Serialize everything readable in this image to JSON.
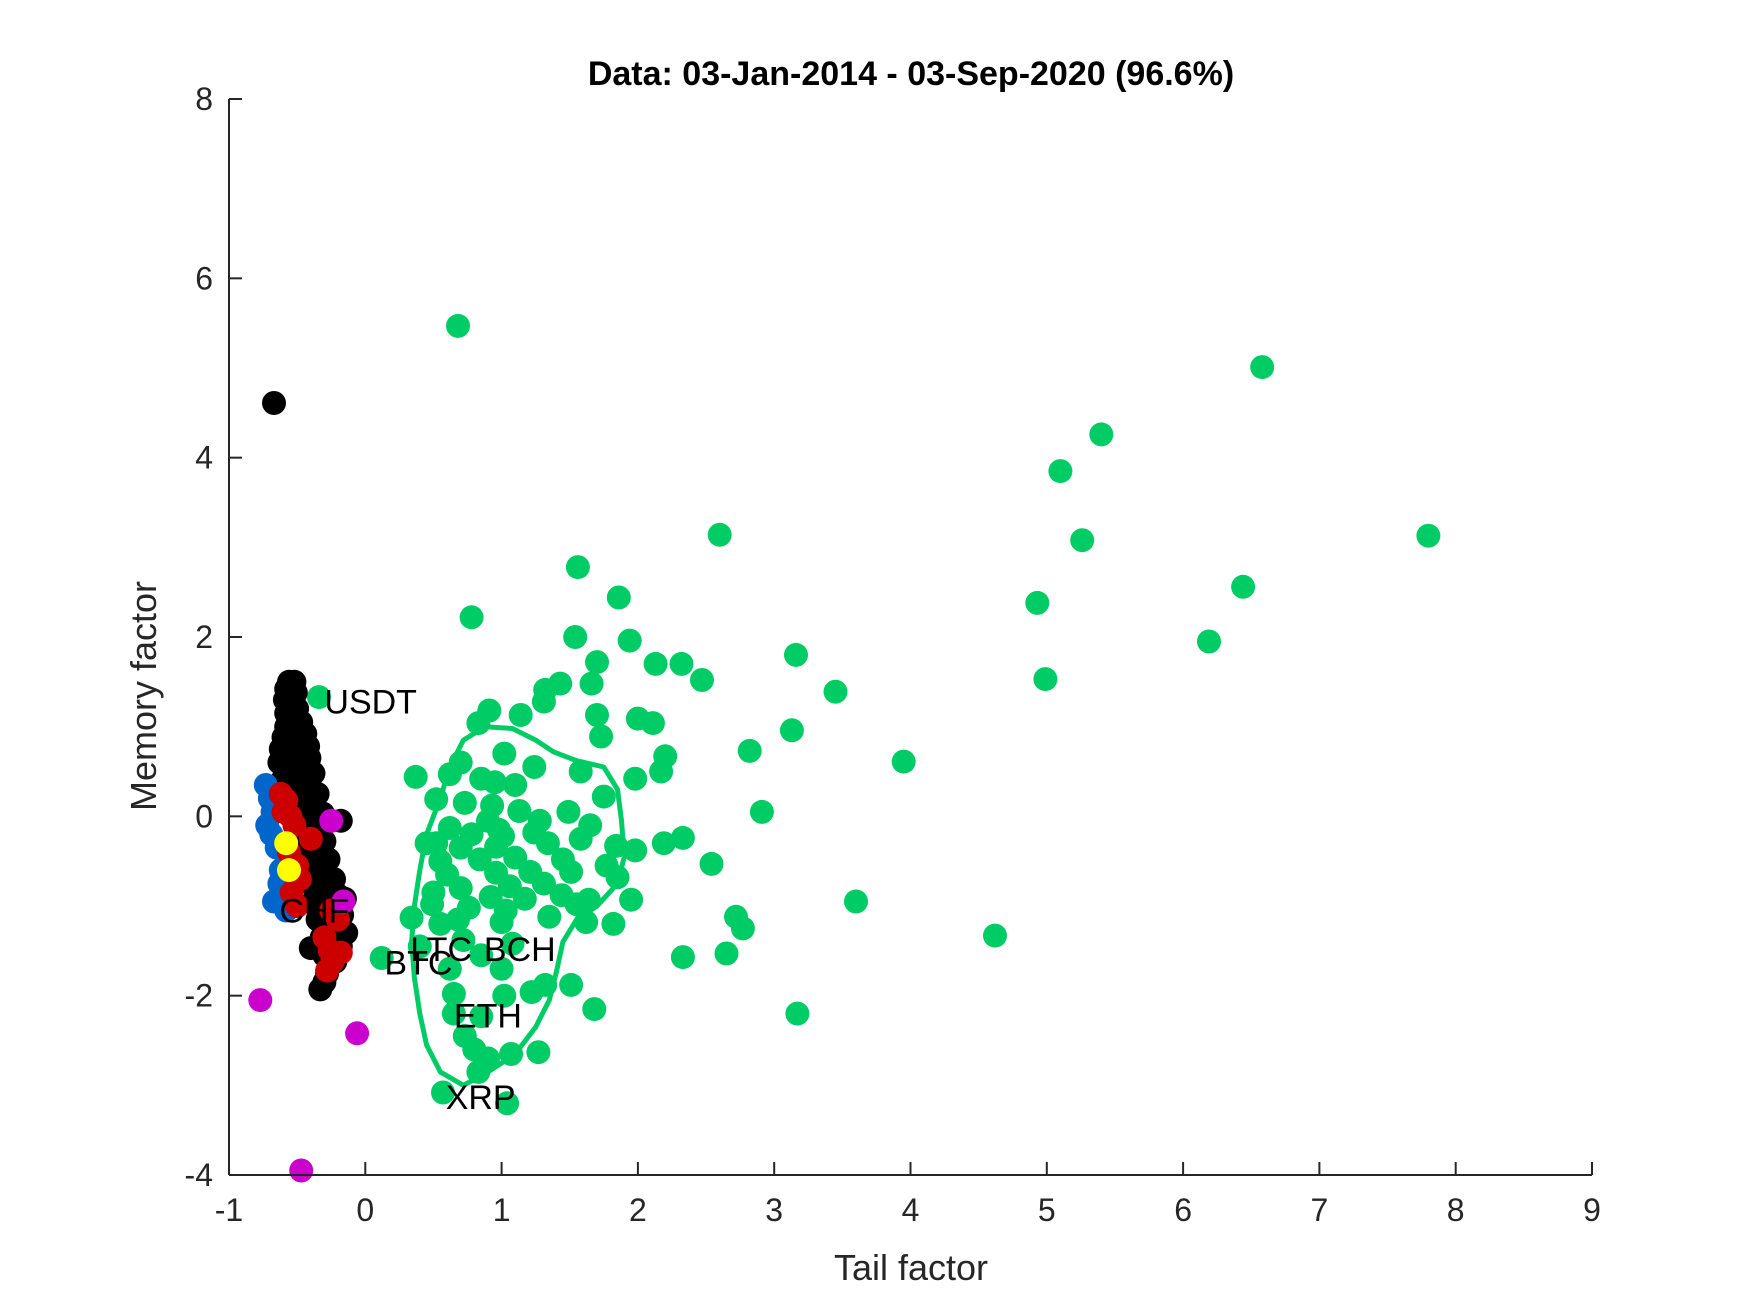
{
  "chart_data": {
    "type": "scatter",
    "title": "Data: 03-Jan-2014 - 03-Sep-2020 (96.6%)",
    "xlabel": "Tail factor",
    "ylabel": "Memory factor",
    "xlim": [
      -1,
      9
    ],
    "ylim": [
      -4,
      8
    ],
    "xticks": [
      -1,
      0,
      1,
      2,
      3,
      4,
      5,
      6,
      7,
      8,
      9
    ],
    "yticks": [
      -4,
      -2,
      0,
      2,
      4,
      6,
      8
    ],
    "grid": false,
    "legend": "none",
    "colors": {
      "green": "#00cc66",
      "black": "#000000",
      "blue": "#0066cc",
      "red": "#cc0000",
      "yellow": "#ffff00",
      "magenta": "#cc00cc",
      "axis": "#262626"
    },
    "series": [
      {
        "color": "green",
        "points": [
          [
            0.68,
            5.47
          ],
          [
            6.58,
            5.01
          ],
          [
            5.4,
            4.26
          ],
          [
            5.1,
            3.85
          ],
          [
            5.26,
            3.08
          ],
          [
            2.6,
            3.14
          ],
          [
            7.8,
            3.13
          ],
          [
            1.56,
            2.78
          ],
          [
            1.86,
            2.44
          ],
          [
            6.44,
            2.56
          ],
          [
            4.93,
            2.38
          ],
          [
            0.78,
            2.22
          ],
          [
            1.54,
            2.0
          ],
          [
            1.94,
            1.96
          ],
          [
            6.19,
            1.95
          ],
          [
            3.16,
            1.8
          ],
          [
            1.7,
            1.72
          ],
          [
            2.13,
            1.7
          ],
          [
            2.32,
            1.7
          ],
          [
            2.47,
            1.52
          ],
          [
            4.99,
            1.53
          ],
          [
            1.43,
            1.48
          ],
          [
            1.66,
            1.48
          ],
          [
            1.32,
            1.41
          ],
          [
            3.45,
            1.39
          ],
          [
            1.31,
            1.28
          ],
          [
            -0.34,
            1.33
          ],
          [
            0.91,
            1.18
          ],
          [
            1.14,
            1.13
          ],
          [
            1.7,
            1.13
          ],
          [
            2.0,
            1.09
          ],
          [
            2.11,
            1.04
          ],
          [
            0.83,
            1.04
          ],
          [
            3.13,
            0.96
          ],
          [
            1.73,
            0.89
          ],
          [
            2.82,
            0.73
          ],
          [
            2.2,
            0.67
          ],
          [
            1.02,
            0.7
          ],
          [
            0.7,
            0.6
          ],
          [
            3.95,
            0.61
          ],
          [
            1.58,
            0.5
          ],
          [
            1.24,
            0.55
          ],
          [
            2.17,
            0.5
          ],
          [
            0.62,
            0.47
          ],
          [
            0.85,
            0.42
          ],
          [
            1.98,
            0.42
          ],
          [
            0.37,
            0.44
          ],
          [
            0.95,
            0.38
          ],
          [
            1.1,
            0.35
          ],
          [
            1.75,
            0.22
          ],
          [
            0.52,
            0.19
          ],
          [
            0.73,
            0.15
          ],
          [
            0.93,
            0.12
          ],
          [
            1.13,
            0.06
          ],
          [
            1.49,
            0.05
          ],
          [
            2.91,
            0.05
          ],
          [
            0.9,
            -0.05
          ],
          [
            1.65,
            -0.1
          ],
          [
            0.62,
            -0.13
          ],
          [
            0.78,
            -0.2
          ],
          [
            1.01,
            -0.22
          ],
          [
            1.24,
            -0.18
          ],
          [
            1.58,
            -0.25
          ],
          [
            2.33,
            -0.24
          ],
          [
            0.52,
            -0.3
          ],
          [
            0.7,
            -0.35
          ],
          [
            0.96,
            -0.34
          ],
          [
            1.34,
            -0.3
          ],
          [
            1.84,
            -0.33
          ],
          [
            2.19,
            -0.3
          ],
          [
            1.98,
            -0.38
          ],
          [
            0.55,
            -0.5
          ],
          [
            0.84,
            -0.48
          ],
          [
            1.1,
            -0.46
          ],
          [
            1.45,
            -0.48
          ],
          [
            2.54,
            -0.53
          ],
          [
            1.77,
            -0.55
          ],
          [
            0.6,
            -0.65
          ],
          [
            0.96,
            -0.63
          ],
          [
            1.21,
            -0.62
          ],
          [
            1.51,
            -0.62
          ],
          [
            1.85,
            -0.68
          ],
          [
            0.7,
            -0.8
          ],
          [
            1.06,
            -0.78
          ],
          [
            1.31,
            -0.75
          ],
          [
            0.5,
            -0.85
          ],
          [
            0.92,
            -0.9
          ],
          [
            1.17,
            -0.92
          ],
          [
            1.44,
            -0.88
          ],
          [
            1.64,
            -0.93
          ],
          [
            1.95,
            -0.93
          ],
          [
            0.49,
            -0.98
          ],
          [
            0.76,
            -1.02
          ],
          [
            1.03,
            -1.05
          ],
          [
            1.55,
            -0.98
          ],
          [
            3.6,
            -0.95
          ],
          [
            0.68,
            -1.15
          ],
          [
            1.0,
            -1.18
          ],
          [
            1.35,
            -1.12
          ],
          [
            1.62,
            -1.18
          ],
          [
            1.82,
            -1.2
          ],
          [
            2.72,
            -1.12
          ],
          [
            0.34,
            -1.13
          ],
          [
            0.55,
            -1.2
          ],
          [
            2.77,
            -1.25
          ],
          [
            4.62,
            -1.33
          ],
          [
            0.72,
            -1.38
          ],
          [
            1.08,
            -1.42
          ],
          [
            0.4,
            -1.45
          ],
          [
            0.85,
            -1.55
          ],
          [
            2.65,
            -1.53
          ],
          [
            2.33,
            -1.57
          ],
          [
            0.12,
            -1.58
          ],
          [
            0.62,
            -1.7
          ],
          [
            1.0,
            -1.7
          ],
          [
            1.32,
            -1.88
          ],
          [
            1.51,
            -1.88
          ],
          [
            0.65,
            -1.98
          ],
          [
            1.02,
            -2.0
          ],
          [
            1.22,
            -1.96
          ],
          [
            0.65,
            -2.2
          ],
          [
            0.85,
            -2.23
          ],
          [
            1.68,
            -2.15
          ],
          [
            3.17,
            -2.2
          ],
          [
            0.73,
            -2.45
          ],
          [
            0.8,
            -2.6
          ],
          [
            1.07,
            -2.65
          ],
          [
            1.27,
            -2.63
          ],
          [
            0.9,
            -2.7
          ],
          [
            0.83,
            -2.85
          ],
          [
            0.57,
            -3.08
          ],
          [
            1.04,
            -3.2
          ],
          [
            0.45,
            -0.3
          ],
          [
            1.28,
            -0.05
          ],
          [
            0.98,
            -0.15
          ]
        ]
      },
      {
        "color": "black",
        "points": [
          [
            -0.67,
            4.61
          ],
          [
            -0.56,
            1.5
          ],
          [
            -0.52,
            1.5
          ],
          [
            -0.58,
            1.42
          ],
          [
            -0.51,
            1.38
          ],
          [
            -0.59,
            1.3
          ],
          [
            -0.54,
            1.25
          ],
          [
            -0.5,
            1.2
          ],
          [
            -0.58,
            1.15
          ],
          [
            -0.53,
            1.1
          ],
          [
            -0.47,
            1.05
          ],
          [
            -0.58,
            1.0
          ],
          [
            -0.51,
            0.95
          ],
          [
            -0.44,
            0.92
          ],
          [
            -0.6,
            0.88
          ],
          [
            -0.55,
            0.85
          ],
          [
            -0.48,
            0.8
          ],
          [
            -0.42,
            0.78
          ],
          [
            -0.62,
            0.75
          ],
          [
            -0.56,
            0.72
          ],
          [
            -0.49,
            0.68
          ],
          [
            -0.41,
            0.65
          ],
          [
            -0.63,
            0.6
          ],
          [
            -0.57,
            0.56
          ],
          [
            -0.51,
            0.52
          ],
          [
            -0.44,
            0.5
          ],
          [
            -0.38,
            0.48
          ],
          [
            -0.61,
            0.4
          ],
          [
            -0.54,
            0.36
          ],
          [
            -0.47,
            0.34
          ],
          [
            -0.4,
            0.3
          ],
          [
            -0.35,
            0.25
          ],
          [
            -0.57,
            0.2
          ],
          [
            -0.5,
            0.15
          ],
          [
            -0.43,
            0.12
          ],
          [
            -0.37,
            0.08
          ],
          [
            -0.31,
            0.03
          ],
          [
            -0.53,
            0.0
          ],
          [
            -0.46,
            -0.03
          ],
          [
            -0.39,
            -0.06
          ],
          [
            -0.32,
            -0.1
          ],
          [
            -0.18,
            -0.05
          ],
          [
            -0.5,
            -0.15
          ],
          [
            -0.43,
            -0.2
          ],
          [
            -0.36,
            -0.25
          ],
          [
            -0.3,
            -0.28
          ],
          [
            -0.46,
            -0.35
          ],
          [
            -0.4,
            -0.4
          ],
          [
            -0.33,
            -0.44
          ],
          [
            -0.27,
            -0.48
          ],
          [
            -0.43,
            -0.55
          ],
          [
            -0.36,
            -0.6
          ],
          [
            -0.29,
            -0.65
          ],
          [
            -0.23,
            -0.7
          ],
          [
            -0.4,
            -0.75
          ],
          [
            -0.33,
            -0.8
          ],
          [
            -0.26,
            -0.84
          ],
          [
            -0.2,
            -0.88
          ],
          [
            -0.15,
            -0.92
          ],
          [
            -0.38,
            -0.95
          ],
          [
            -0.31,
            -1.0
          ],
          [
            -0.24,
            -1.05
          ],
          [
            -0.17,
            -1.1
          ],
          [
            -0.35,
            -1.15
          ],
          [
            -0.28,
            -1.2
          ],
          [
            -0.21,
            -1.25
          ],
          [
            -0.14,
            -1.3
          ],
          [
            -0.32,
            -1.35
          ],
          [
            -0.25,
            -1.4
          ],
          [
            -0.4,
            -1.47
          ],
          [
            -0.18,
            -1.45
          ],
          [
            -0.3,
            -1.55
          ],
          [
            -0.22,
            -1.62
          ],
          [
            -0.28,
            -1.75
          ],
          [
            -0.33,
            -1.93
          ],
          [
            -0.3,
            -1.85
          ]
        ]
      },
      {
        "color": "blue",
        "points": [
          [
            -0.73,
            0.35
          ],
          [
            -0.7,
            0.2
          ],
          [
            -0.68,
            0.05
          ],
          [
            -0.72,
            -0.1
          ],
          [
            -0.69,
            -0.2
          ],
          [
            -0.65,
            -0.35
          ],
          [
            -0.62,
            -0.6
          ],
          [
            -0.67,
            -0.95
          ],
          [
            -0.58,
            -1.05
          ],
          [
            -0.63,
            -0.75
          ]
        ]
      },
      {
        "color": "red",
        "points": [
          [
            -0.62,
            0.25
          ],
          [
            -0.58,
            0.18
          ],
          [
            -0.6,
            0.05
          ],
          [
            -0.55,
            0.0
          ],
          [
            -0.52,
            -0.1
          ],
          [
            -0.4,
            -0.25
          ],
          [
            -0.56,
            -0.4
          ],
          [
            -0.5,
            -0.55
          ],
          [
            -0.48,
            -0.7
          ],
          [
            -0.54,
            -0.85
          ],
          [
            -0.5,
            -1.0
          ],
          [
            -0.25,
            -1.05
          ],
          [
            -0.2,
            -1.15
          ],
          [
            -0.3,
            -1.35
          ],
          [
            -0.26,
            -1.5
          ],
          [
            -0.18,
            -1.52
          ],
          [
            -0.24,
            -1.62
          ],
          [
            -0.28,
            -1.72
          ]
        ]
      },
      {
        "color": "yellow",
        "points": [
          [
            -0.58,
            -0.3
          ],
          [
            -0.56,
            -0.6
          ]
        ]
      },
      {
        "color": "magenta",
        "points": [
          [
            -0.25,
            -0.05
          ],
          [
            -0.16,
            -0.95
          ],
          [
            -0.77,
            -2.05
          ],
          [
            -0.06,
            -2.42
          ],
          [
            -0.47,
            -3.95
          ]
        ]
      }
    ],
    "contour": {
      "color": "green",
      "points": [
        [
          0.55,
          0.2
        ],
        [
          0.62,
          0.55
        ],
        [
          0.72,
          0.85
        ],
        [
          0.88,
          1.0
        ],
        [
          1.08,
          0.98
        ],
        [
          1.25,
          0.85
        ],
        [
          1.38,
          0.72
        ],
        [
          1.55,
          0.62
        ],
        [
          1.75,
          0.55
        ],
        [
          1.85,
          0.3
        ],
        [
          1.88,
          -0.05
        ],
        [
          1.9,
          -0.45
        ],
        [
          1.85,
          -0.75
        ],
        [
          1.7,
          -1.0
        ],
        [
          1.55,
          -1.15
        ],
        [
          1.45,
          -1.4
        ],
        [
          1.4,
          -1.75
        ],
        [
          1.35,
          -2.05
        ],
        [
          1.25,
          -2.35
        ],
        [
          1.1,
          -2.65
        ],
        [
          0.9,
          -2.85
        ],
        [
          0.72,
          -3.0
        ],
        [
          0.55,
          -2.85
        ],
        [
          0.45,
          -2.55
        ],
        [
          0.4,
          -2.2
        ],
        [
          0.36,
          -1.8
        ],
        [
          0.34,
          -1.4
        ],
        [
          0.36,
          -1.0
        ],
        [
          0.4,
          -0.6
        ],
        [
          0.45,
          -0.2
        ],
        [
          0.55,
          0.2
        ]
      ]
    },
    "annotations": [
      {
        "text": "USDT",
        "x": -0.3,
        "y": 1.28
      },
      {
        "text": "CHF",
        "x": -0.63,
        "y": -1.05
      },
      {
        "text": "BTC",
        "x": 0.14,
        "y": -1.63
      },
      {
        "text": "LTC",
        "x": 0.33,
        "y": -1.48
      },
      {
        "text": "BCH",
        "x": 0.87,
        "y": -1.48
      },
      {
        "text": "ETH",
        "x": 0.65,
        "y": -2.22
      },
      {
        "text": "XRP",
        "x": 0.59,
        "y": -3.13
      }
    ]
  }
}
